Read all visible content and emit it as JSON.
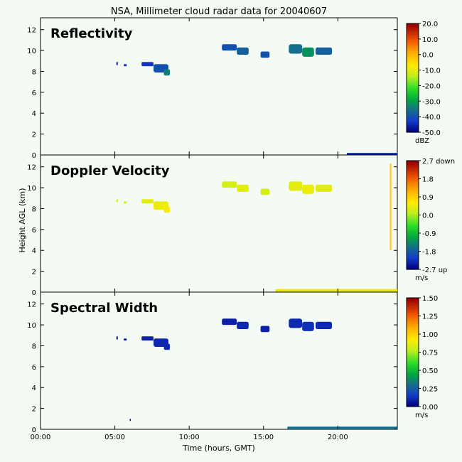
{
  "title": "NSA, Millimeter cloud radar data for 20040607",
  "chart_data": [
    {
      "type": "heatmap",
      "panel_label": "Reflectivity",
      "ylabel": "",
      "ylim": [
        0,
        13
      ],
      "xlim": [
        0,
        24
      ],
      "colorbar": {
        "ticks": [
          "20.0",
          "10.0",
          "0.0",
          "-10.0",
          "-20.0",
          "-30.0",
          "-40.0",
          "-50.0"
        ],
        "unit": "dBZ",
        "range": [
          -50,
          20
        ]
      },
      "echoes": [
        {
          "x0": 5.1,
          "x1": 5.2,
          "y0": 8.6,
          "y1": 8.9,
          "value": -45
        },
        {
          "x0": 5.6,
          "x1": 5.8,
          "y0": 8.5,
          "y1": 8.7,
          "value": -45
        },
        {
          "x0": 6.8,
          "x1": 7.6,
          "y0": 8.5,
          "y1": 8.9,
          "value": -44
        },
        {
          "x0": 7.6,
          "x1": 8.6,
          "y0": 7.9,
          "y1": 8.7,
          "value": -40
        },
        {
          "x0": 8.3,
          "x1": 8.7,
          "y0": 7.6,
          "y1": 8.2,
          "value": -34
        },
        {
          "x0": 12.2,
          "x1": 13.2,
          "y0": 10.0,
          "y1": 10.6,
          "value": -40
        },
        {
          "x0": 13.2,
          "x1": 14.0,
          "y0": 9.6,
          "y1": 10.3,
          "value": -38
        },
        {
          "x0": 14.8,
          "x1": 15.4,
          "y0": 9.3,
          "y1": 9.9,
          "value": -40
        },
        {
          "x0": 16.7,
          "x1": 17.6,
          "y0": 9.7,
          "y1": 10.6,
          "value": -36
        },
        {
          "x0": 17.6,
          "x1": 18.4,
          "y0": 9.4,
          "y1": 10.3,
          "value": -32
        },
        {
          "x0": 18.5,
          "x1": 19.6,
          "y0": 9.6,
          "y1": 10.3,
          "value": -38
        },
        {
          "x0": 20.6,
          "x1": 24.0,
          "y0": 0.0,
          "y1": 0.2,
          "value": -45
        }
      ]
    },
    {
      "type": "heatmap",
      "panel_label": "Doppler Velocity",
      "ylabel": "Height AGL (km)",
      "ylim": [
        0,
        13
      ],
      "xlim": [
        0,
        24
      ],
      "colorbar": {
        "ticks": [
          "2.7 down",
          "1.8",
          "0.9",
          "0.0",
          "-0.9",
          "-1.8",
          "-2.7 up"
        ],
        "unit": "m/s",
        "range": [
          -2.7,
          2.7
        ]
      },
      "echoes": [
        {
          "x0": 5.1,
          "x1": 5.2,
          "y0": 8.6,
          "y1": 8.9,
          "value": 0.3
        },
        {
          "x0": 5.6,
          "x1": 5.8,
          "y0": 8.5,
          "y1": 8.7,
          "value": 0.3
        },
        {
          "x0": 6.8,
          "x1": 7.6,
          "y0": 8.5,
          "y1": 8.9,
          "value": 0.4
        },
        {
          "x0": 7.6,
          "x1": 8.6,
          "y0": 7.9,
          "y1": 8.7,
          "value": 0.5
        },
        {
          "x0": 8.3,
          "x1": 8.7,
          "y0": 7.6,
          "y1": 8.2,
          "value": 0.6
        },
        {
          "x0": 12.2,
          "x1": 13.2,
          "y0": 10.0,
          "y1": 10.6,
          "value": 0.3
        },
        {
          "x0": 13.2,
          "x1": 14.0,
          "y0": 9.6,
          "y1": 10.3,
          "value": 0.4
        },
        {
          "x0": 14.8,
          "x1": 15.4,
          "y0": 9.3,
          "y1": 9.9,
          "value": 0.3
        },
        {
          "x0": 16.7,
          "x1": 17.6,
          "y0": 9.7,
          "y1": 10.6,
          "value": 0.4
        },
        {
          "x0": 17.6,
          "x1": 18.4,
          "y0": 9.4,
          "y1": 10.3,
          "value": 0.5
        },
        {
          "x0": 18.5,
          "x1": 19.6,
          "y0": 9.6,
          "y1": 10.3,
          "value": 0.4
        },
        {
          "x0": 15.8,
          "x1": 24.0,
          "y0": 0.0,
          "y1": 0.3,
          "value": 0.5
        },
        {
          "x0": 23.5,
          "x1": 23.6,
          "y0": 4.0,
          "y1": 12.3,
          "value": 1.0
        }
      ]
    },
    {
      "type": "heatmap",
      "panel_label": "Spectral Width",
      "ylabel": "",
      "ylim": [
        0,
        13
      ],
      "xlim": [
        0,
        24
      ],
      "xlabel": "Time (hours, GMT)",
      "xticks": [
        "00:00",
        "05:00",
        "10:00",
        "15:00",
        "20:00"
      ],
      "yticks": [
        "0",
        "2",
        "4",
        "6",
        "8",
        "10",
        "12"
      ],
      "colorbar": {
        "ticks": [
          "1.50",
          "1.25",
          "1.00",
          "0.75",
          "0.50",
          "0.25",
          "0.00"
        ],
        "unit": "m/s",
        "range": [
          0,
          1.5
        ]
      },
      "echoes": [
        {
          "x0": 5.1,
          "x1": 5.2,
          "y0": 8.6,
          "y1": 8.9,
          "value": 0.08
        },
        {
          "x0": 5.6,
          "x1": 5.8,
          "y0": 8.5,
          "y1": 8.7,
          "value": 0.08
        },
        {
          "x0": 6.0,
          "x1": 6.05,
          "y0": 0.8,
          "y1": 1.0,
          "value": 0.05
        },
        {
          "x0": 6.8,
          "x1": 7.6,
          "y0": 8.5,
          "y1": 8.9,
          "value": 0.08
        },
        {
          "x0": 7.6,
          "x1": 8.6,
          "y0": 7.9,
          "y1": 8.7,
          "value": 0.1
        },
        {
          "x0": 8.3,
          "x1": 8.7,
          "y0": 7.6,
          "y1": 8.2,
          "value": 0.1
        },
        {
          "x0": 12.2,
          "x1": 13.2,
          "y0": 10.0,
          "y1": 10.6,
          "value": 0.08
        },
        {
          "x0": 13.2,
          "x1": 14.0,
          "y0": 9.6,
          "y1": 10.3,
          "value": 0.1
        },
        {
          "x0": 14.8,
          "x1": 15.4,
          "y0": 9.3,
          "y1": 9.9,
          "value": 0.08
        },
        {
          "x0": 16.7,
          "x1": 17.6,
          "y0": 9.7,
          "y1": 10.6,
          "value": 0.1
        },
        {
          "x0": 17.6,
          "x1": 18.4,
          "y0": 9.4,
          "y1": 10.3,
          "value": 0.12
        },
        {
          "x0": 18.5,
          "x1": 19.6,
          "y0": 9.6,
          "y1": 10.3,
          "value": 0.1
        },
        {
          "x0": 16.6,
          "x1": 24.0,
          "y0": 0.0,
          "y1": 0.25,
          "value": 0.3
        }
      ]
    }
  ]
}
